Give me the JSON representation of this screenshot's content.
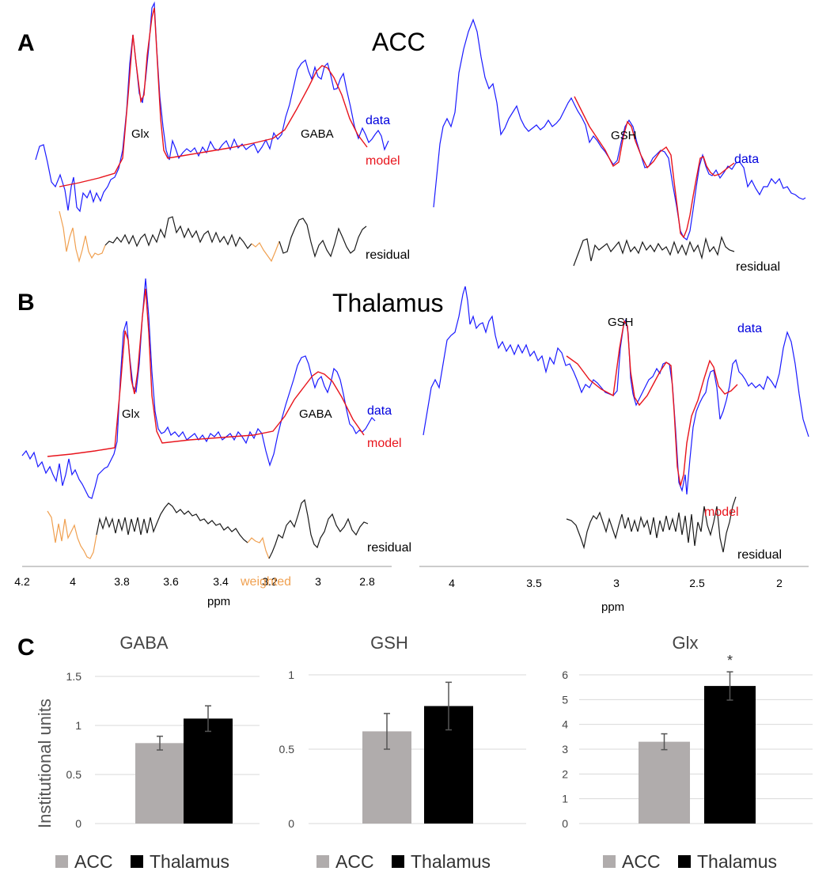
{
  "panel_labels": {
    "a": "A",
    "b": "B",
    "c": "C"
  },
  "regions": {
    "acc": "ACC",
    "thalamus": "Thalamus"
  },
  "spectra_labels": {
    "glx": "Glx",
    "gaba": "GABA",
    "gsh": "GSH",
    "data": "data",
    "model": "model",
    "residual": "residual",
    "weighted": "weighted",
    "ppm": "ppm"
  },
  "colors": {
    "data": "#1a1aff",
    "model": "#e8141c",
    "residual": "#1a1a1a",
    "weighted": "#f0a050",
    "acc_bar": "#b0acac",
    "thal_bar": "#000000"
  },
  "left_axis": {
    "ticks": [
      "4.2",
      "4",
      "3.8",
      "3.6",
      "3.4",
      "3.2",
      "3",
      "2.8"
    ]
  },
  "right_axis": {
    "ticks": [
      "4",
      "3.5",
      "3",
      "2.5",
      "2"
    ]
  },
  "chart_data": [
    {
      "type": "bar",
      "title": "GABA",
      "categories": [
        "ACC",
        "Thalamus"
      ],
      "values": [
        0.82,
        1.07
      ],
      "errors": [
        0.07,
        0.13
      ],
      "ylim": [
        0,
        1.5
      ],
      "yticks": [
        "0",
        "0.5",
        "1",
        "1.5"
      ],
      "ylabel": "Institutional units",
      "legend": [
        "ACC",
        "Thalamus"
      ]
    },
    {
      "type": "bar",
      "title": "GSH",
      "categories": [
        "ACC",
        "Thalamus"
      ],
      "values": [
        0.62,
        0.79
      ],
      "errors": [
        0.12,
        0.16
      ],
      "ylim": [
        0,
        1
      ],
      "yticks": [
        "0",
        "0.5",
        "1"
      ],
      "legend": [
        "ACC",
        "Thalamus"
      ]
    },
    {
      "type": "bar",
      "title": "Glx",
      "categories": [
        "ACC",
        "Thalamus"
      ],
      "values": [
        3.3,
        5.55
      ],
      "errors": [
        0.32,
        0.57
      ],
      "ylim": [
        0,
        6
      ],
      "yticks": [
        "0",
        "1",
        "2",
        "3",
        "4",
        "5",
        "6"
      ],
      "annotation": "*",
      "legend": [
        "ACC",
        "Thalamus"
      ]
    }
  ]
}
